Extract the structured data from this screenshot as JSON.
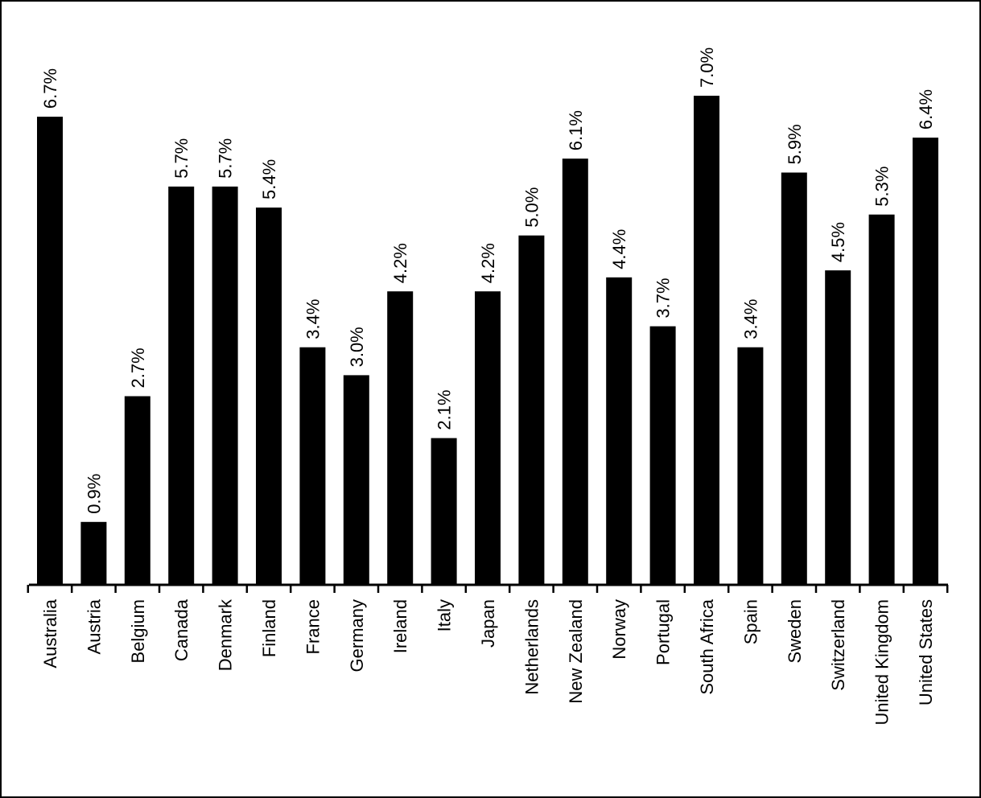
{
  "chart_data": {
    "type": "bar",
    "title": "",
    "xlabel": "",
    "ylabel": "",
    "categories": [
      "Australia",
      "Austria",
      "Belgium",
      "Canada",
      "Denmark",
      "Finland",
      "France",
      "Germany",
      "Ireland",
      "Italy",
      "Japan",
      "Netherlands",
      "New Zealand",
      "Norway",
      "Portugal",
      "South Africa",
      "Spain",
      "Sweden",
      "Switzerland",
      "United Kingdom",
      "United States"
    ],
    "values": [
      6.7,
      0.9,
      2.7,
      5.7,
      5.7,
      5.4,
      3.4,
      3.0,
      4.2,
      2.1,
      4.2,
      5.0,
      6.1,
      4.4,
      3.7,
      7.0,
      3.4,
      5.9,
      4.5,
      5.3,
      6.4
    ],
    "value_labels": [
      "6.7%",
      "0.9%",
      "2.7%",
      "5.7%",
      "5.7%",
      "5.4%",
      "3.4%",
      "3.0%",
      "4.2%",
      "2.1%",
      "4.2%",
      "5.0%",
      "6.1%",
      "4.4%",
      "3.7%",
      "7.0%",
      "3.4%",
      "5.9%",
      "4.5%",
      "5.3%",
      "6.4%"
    ],
    "ylim": [
      0,
      7.0
    ],
    "grid": false,
    "legend": "none",
    "colors": {
      "bar": "#000000",
      "axis": "#000000",
      "text": "#000000",
      "background": "#ffffff"
    }
  }
}
